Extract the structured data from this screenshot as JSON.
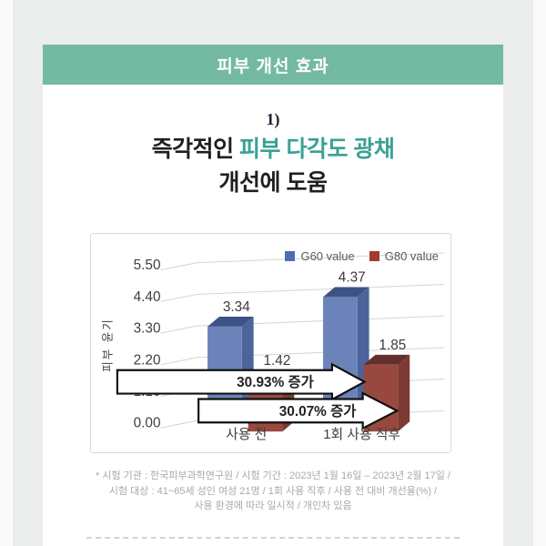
{
  "page": {
    "banner": {
      "label": "피부 개선 효과",
      "bg_color": "#74b9a2"
    },
    "section_number": "1)",
    "heading": {
      "line1_prefix": "즉각적인 ",
      "line1_highlight": "피부 다각도 광채",
      "line2": "개선에 도움",
      "highlight_color": "#3aa192",
      "text_color": "#1f1f21"
    },
    "footnote_lines": [
      "* 시험 기관 : 한국피부과학연구원 / 시험 기간 : 2023년 1월 16일 – 2023년 2월 17일 /",
      "시험 대상 : 41~65세 성인 여성 21명 / 1회 사용 직후 / 사용 전 대비 개선율(%) /",
      "사용 환경에 따라 일시적 / 개인차 있음"
    ]
  },
  "chart_data": {
    "type": "bar",
    "style": "3d",
    "title": "",
    "ylabel": "피부 윤기",
    "xlabel": "",
    "categories": [
      "사용 전",
      "1회 사용 직후"
    ],
    "series": [
      {
        "name": "G60 value",
        "values": [
          3.34,
          4.37
        ],
        "front_color": "#6b83b8",
        "top_color": "#3d5385",
        "side_color": "#4d639c",
        "legend_color": "#4f6db0"
      },
      {
        "name": "G80 value",
        "values": [
          1.42,
          1.85
        ],
        "front_color": "#98493f",
        "top_color": "#622f29",
        "side_color": "#7b3a33",
        "legend_color": "#a33b2f"
      }
    ],
    "yticks": [
      5.5,
      4.4,
      3.3,
      2.2,
      1.1,
      0.0
    ],
    "ylim": [
      0,
      5.5
    ],
    "grid": true,
    "legend_position": "top-right",
    "annotations": [
      {
        "text": "30.93% 증가",
        "applies_to": "G60 value"
      },
      {
        "text": "30.07% 증가",
        "applies_to": "G80 value"
      }
    ],
    "value_label_color": "#3c3c3c",
    "axis_text_color": "#404040",
    "grid_color": "#d4d4d4"
  }
}
